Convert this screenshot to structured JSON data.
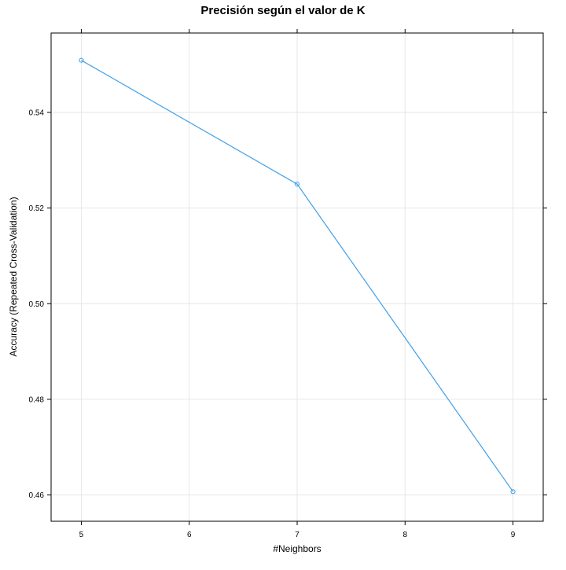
{
  "chart_data": {
    "type": "line",
    "title": "Precisión según el valor de K",
    "xlabel": "#Neighbors",
    "ylabel": "Accuracy (Repeated Cross-Validation)",
    "x": [
      5,
      7,
      9
    ],
    "series": [
      {
        "values": [
          0.5509,
          0.525,
          0.4607
        ]
      }
    ],
    "xlim": [
      4.72,
      9.28
    ],
    "ylim": [
      0.4545,
      0.5566
    ],
    "xticks": [
      5,
      6,
      7,
      8,
      9
    ],
    "xtick_labels": [
      "5",
      "6",
      "7",
      "8",
      "9"
    ],
    "yticks": [
      0.46,
      0.48,
      0.5,
      0.52,
      0.54
    ],
    "ytick_labels": [
      "0.46",
      "0.48",
      "0.50",
      "0.52",
      "0.54"
    ],
    "grid": true,
    "marker": "open-circle",
    "colors": {
      "series": "#3fa0e8",
      "grid": "#e6e6e6",
      "frame": "#000000"
    }
  }
}
